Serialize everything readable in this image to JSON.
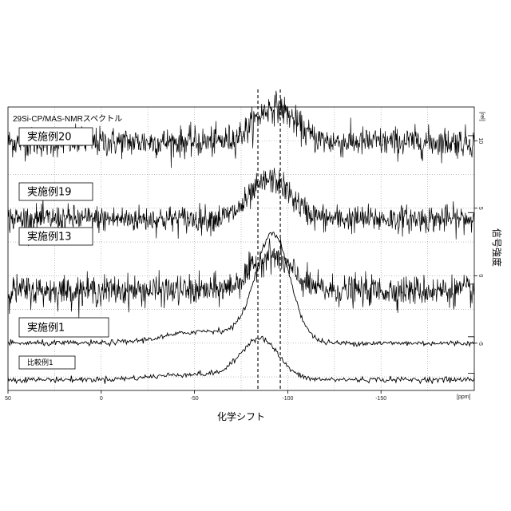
{
  "chart_data": {
    "type": "line",
    "title": "29Si-CP/MAS-NMRスペクトル",
    "xlabel": "化学シフト",
    "ylabel": "信号強度",
    "x_unit_label": "[ppm]",
    "y_unit_label": "[rel]",
    "xlim": [
      50,
      -200
    ],
    "ylim": [
      -8.5,
      12.5
    ],
    "x_reversed": true,
    "x_ticks": [
      50,
      0,
      -50,
      -100,
      -150
    ],
    "x_tick_labels": [
      "50",
      "0",
      "-50",
      "-100",
      "-150"
    ],
    "y_ticks": [
      10,
      5,
      0,
      -5
    ],
    "y_tick_labels": [
      "10",
      "5",
      "0",
      "-5"
    ],
    "grid": true,
    "reference_lines_x": [
      -84,
      -96
    ],
    "series": [
      {
        "name": "実施例20",
        "baseline": 9.9,
        "peak_center": -93,
        "peak_height": 2.6,
        "peak_width": 15,
        "noise": 0.55,
        "display": "noisy"
      },
      {
        "name": "実施例19",
        "baseline": 4.2,
        "peak_center": -91,
        "peak_height": 2.9,
        "peak_width": 15,
        "noise": 0.5,
        "display": "noisy"
      },
      {
        "name": "実施例13",
        "baseline": -1.1,
        "peak_center": -91,
        "peak_height": 2.6,
        "peak_width": 15,
        "noise": 0.55,
        "display": "noisy"
      },
      {
        "name": "実施例1",
        "baseline": -5.0,
        "peak_center": -92,
        "peak_height": 7.9,
        "peak_width": 13,
        "noise": 0.1,
        "display": "smooth",
        "shoulder": 0.9
      },
      {
        "name": "比較例1",
        "baseline": -7.7,
        "peak_center": -85,
        "peak_height": 3.0,
        "peak_width": 14,
        "noise": 0.1,
        "display": "smooth",
        "shoulder": 0.4
      }
    ]
  }
}
